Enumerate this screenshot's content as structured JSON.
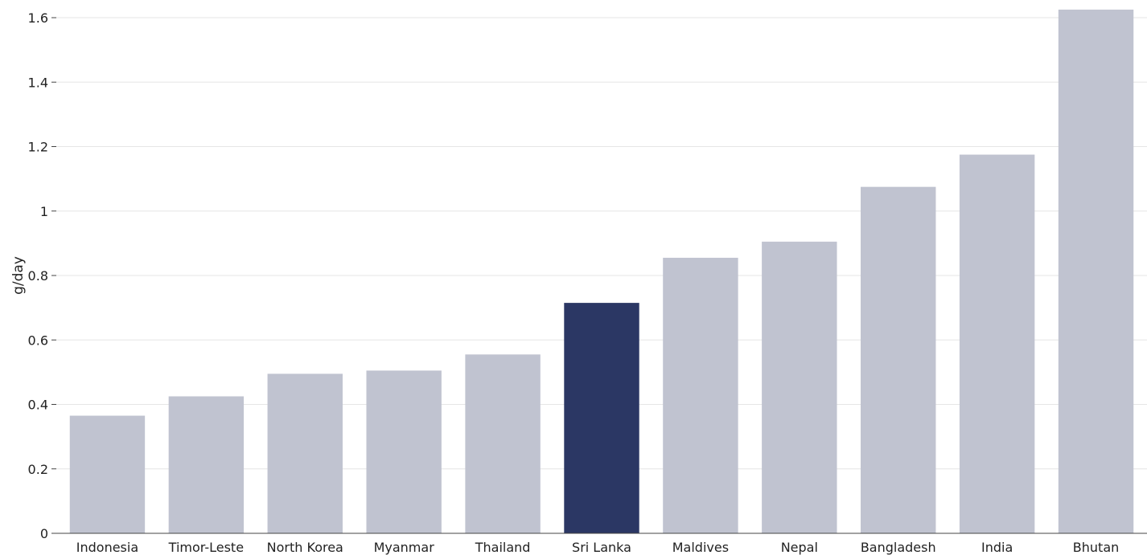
{
  "chart_data": {
    "type": "bar",
    "categories": [
      "Indonesia",
      "Timor-Leste",
      "North Korea",
      "Myanmar",
      "Thailand",
      "Sri Lanka",
      "Maldives",
      "Nepal",
      "Bangladesh",
      "India",
      "Bhutan"
    ],
    "values": [
      0.365,
      0.425,
      0.495,
      0.505,
      0.555,
      0.715,
      0.855,
      0.905,
      1.075,
      1.175,
      1.625
    ],
    "highlight": "Sri Lanka",
    "title": "",
    "xlabel": "",
    "ylabel": "g/day",
    "ylim": [
      0,
      1.6
    ],
    "yticks": [
      0,
      0.2,
      0.4,
      0.6,
      0.8,
      1,
      1.2,
      1.4,
      1.6
    ],
    "ytick_labels": [
      "0",
      "0.2",
      "0.4",
      "0.6",
      "0.8",
      "1",
      "1.2",
      "1.4",
      "1.6"
    ],
    "grid": true,
    "legend": "none",
    "colors": {
      "bar": "#c0c3d0",
      "highlight": "#2b3764",
      "grid": "#e6e6e6",
      "axis": "#444444",
      "text": "#222222"
    }
  }
}
